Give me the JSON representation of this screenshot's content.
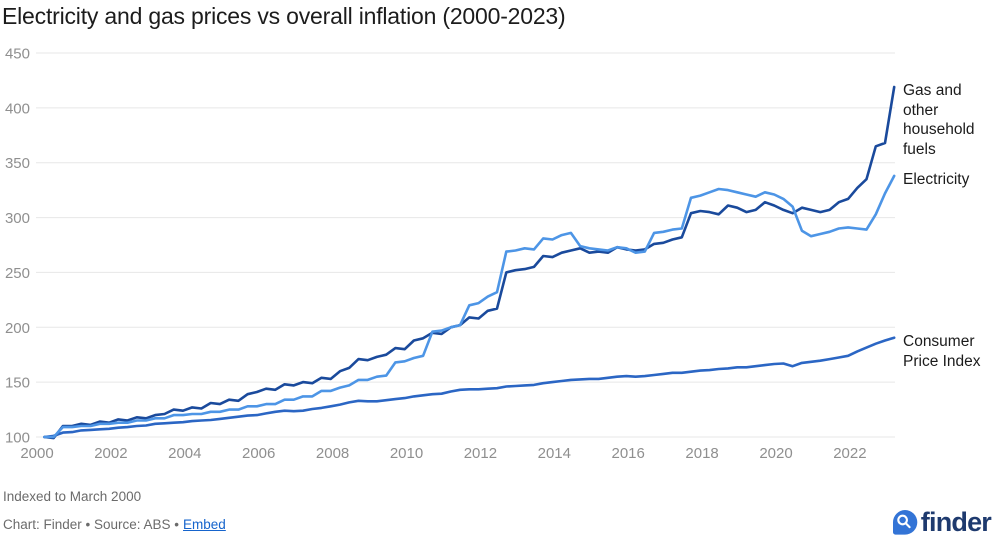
{
  "title": "Electricity and gas prices vs overall inflation (2000-2023)",
  "footer": {
    "note": "Indexed to March 2000",
    "credit_prefix": "Chart: Finder • Source: ABS •",
    "embed_label": "Embed"
  },
  "logo": {
    "brand": "finder",
    "icon": "magnifier-drop-icon",
    "icon_color": "#3374d6",
    "wordmark_color": "#1e3a6e"
  },
  "colors": {
    "grid": "#e7e7e7",
    "axis_text": "#8f8f8f",
    "title_text": "#1c1c1c",
    "note_text": "#6b6b6b",
    "link": "#1664cc"
  },
  "chart_data": {
    "type": "line",
    "title": "Electricity and gas prices vs overall inflation (2000-2023)",
    "subtitle_note": "Indexed to March 2000",
    "x_unit": "year (quarterly data)",
    "x_start": 2000.2,
    "x_step": 0.25,
    "xlim": [
      2000,
      2023.4
    ],
    "ylim": [
      100,
      450
    ],
    "x_ticks": [
      2000,
      2002,
      2004,
      2006,
      2008,
      2010,
      2012,
      2014,
      2016,
      2018,
      2020,
      2022
    ],
    "y_ticks": [
      100,
      150,
      200,
      250,
      300,
      350,
      400,
      450
    ],
    "grid": "horizontal",
    "legend_position": "right-edge-labels",
    "series": [
      {
        "name": "Gas and other household fuels",
        "color": "#1a4a9c",
        "values": [
          100,
          99,
          110,
          110,
          112,
          111,
          114,
          113,
          116,
          115,
          118,
          117,
          120,
          121,
          125,
          124,
          127,
          126,
          131,
          130,
          134,
          133,
          139,
          141,
          144,
          143,
          148,
          147,
          150,
          149,
          154,
          153,
          160,
          163,
          171,
          170,
          173,
          175,
          181,
          180,
          188,
          190,
          195,
          194,
          200,
          202,
          209,
          208,
          215,
          217,
          250,
          252,
          253,
          255,
          265,
          264,
          268,
          270,
          272,
          268,
          269,
          268,
          273,
          271,
          270,
          271,
          276,
          277,
          280,
          282,
          304,
          306,
          305,
          303,
          311,
          309,
          305,
          307,
          314,
          311,
          307,
          304,
          309,
          307,
          305,
          307,
          314,
          317,
          327,
          335,
          365,
          368,
          419
        ]
      },
      {
        "name": "Electricity",
        "color": "#4d95e6",
        "values": [
          100,
          100,
          109,
          109,
          110,
          110,
          112,
          112,
          113,
          113,
          115,
          115,
          117,
          117,
          120,
          120,
          121,
          121,
          123,
          123,
          125,
          125,
          128,
          128,
          130,
          130,
          134,
          134,
          137,
          137,
          142,
          142,
          145,
          147,
          152,
          152,
          155,
          156,
          168,
          169,
          172,
          174,
          196,
          197,
          200,
          202,
          220,
          222,
          228,
          232,
          269,
          270,
          272,
          271,
          281,
          280,
          284,
          286,
          274,
          272,
          271,
          270,
          273,
          272,
          268,
          269,
          286,
          287,
          289,
          290,
          318,
          320,
          323,
          326,
          325,
          323,
          321,
          319,
          323,
          321,
          317,
          310,
          288,
          283,
          285,
          287,
          290,
          291,
          290,
          289,
          303,
          322,
          338
        ]
      },
      {
        "name": "Consumer Price Index",
        "color": "#2b66c4",
        "values": [
          100,
          101,
          104,
          104.5,
          106,
          106.5,
          107,
          107.5,
          108.5,
          109,
          110,
          110.5,
          112,
          112.5,
          113,
          113.5,
          114.5,
          115,
          115.5,
          116.5,
          117.5,
          118.5,
          119.5,
          120,
          121.5,
          123,
          124,
          123.5,
          124,
          125.5,
          126.5,
          128,
          129.5,
          131.5,
          133,
          132.5,
          132.5,
          133.5,
          134.5,
          135.5,
          137,
          138,
          139,
          139.5,
          141.5,
          143,
          143.5,
          143.5,
          144,
          144.5,
          146,
          146.5,
          147,
          147.5,
          149,
          150,
          151,
          152,
          152.5,
          153,
          153,
          154,
          155,
          155.5,
          155,
          155.5,
          156.5,
          157.5,
          158.5,
          158.5,
          159.5,
          160.5,
          161,
          162,
          162.5,
          163.5,
          163.5,
          164.5,
          165.5,
          166.5,
          167,
          164.5,
          167.5,
          168.5,
          169.5,
          171,
          172.5,
          174,
          178,
          181.5,
          185,
          188,
          190.5
        ]
      }
    ]
  }
}
